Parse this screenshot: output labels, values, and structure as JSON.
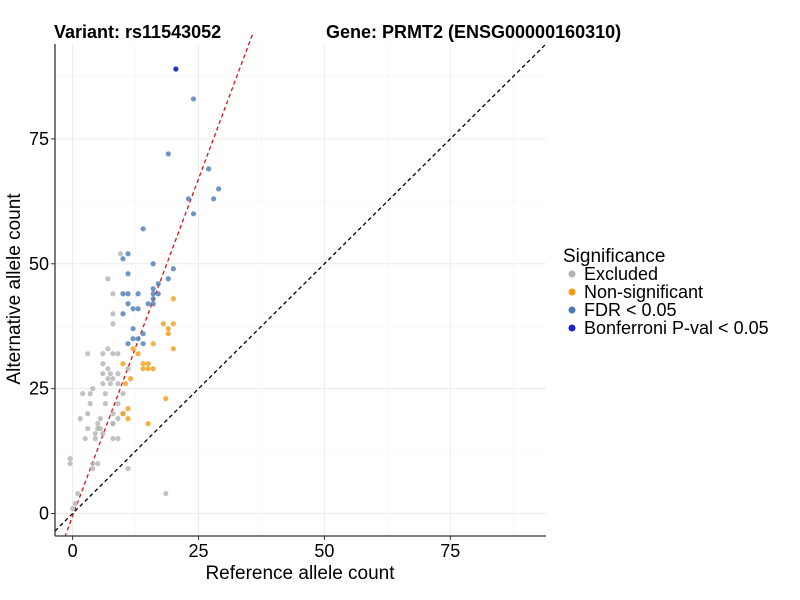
{
  "chart_data": {
    "type": "scatter",
    "title_left": "Variant: rs11543052",
    "title_right": "Gene: PRMT2 (ENSG00000160310)",
    "xlabel": "Reference allele count",
    "ylabel": "Alternative allele count",
    "xlim": [
      -3.5,
      94
    ],
    "ylim": [
      -4.5,
      94
    ],
    "x_ticks": [
      0,
      25,
      50,
      75
    ],
    "y_ticks": [
      0,
      25,
      50,
      75
    ],
    "legend": {
      "title": "Significance",
      "placement": "right",
      "entries": [
        {
          "key": "excluded",
          "label": "Excluded",
          "color": "#b3b3b3"
        },
        {
          "key": "nonsig",
          "label": "Non-significant",
          "color": "#f39c12"
        },
        {
          "key": "fdr",
          "label": "FDR < 0.05",
          "color": "#4a7ab5"
        },
        {
          "key": "bonf",
          "label": "Bonferroni P-val < 0.05",
          "color": "#1428d2"
        }
      ]
    },
    "reference_lines": [
      {
        "name": "identity",
        "slope": 1,
        "intercept": 0,
        "color": "#000000",
        "style": "dashed"
      },
      {
        "name": "fit",
        "slope": 2.7,
        "intercept": -0.5,
        "color": "#e01010",
        "style": "dashed"
      }
    ],
    "series": [
      {
        "name": "Excluded",
        "key": "excluded",
        "points": [
          [
            -0.5,
            10
          ],
          [
            -0.5,
            11
          ],
          [
            0,
            1
          ],
          [
            0.5,
            2
          ],
          [
            1,
            4
          ],
          [
            1.5,
            19
          ],
          [
            2,
            24
          ],
          [
            2.5,
            15
          ],
          [
            3,
            32
          ],
          [
            3,
            20
          ],
          [
            3,
            17
          ],
          [
            3.5,
            24
          ],
          [
            3.5,
            22
          ],
          [
            4,
            10
          ],
          [
            4,
            9
          ],
          [
            4,
            25
          ],
          [
            4.5,
            16
          ],
          [
            4.5,
            15
          ],
          [
            5,
            17
          ],
          [
            5,
            18
          ],
          [
            5,
            10
          ],
          [
            5.5,
            19
          ],
          [
            5.5,
            17
          ],
          [
            6,
            26
          ],
          [
            6,
            28
          ],
          [
            6,
            30
          ],
          [
            6,
            32
          ],
          [
            6.5,
            24
          ],
          [
            6.5,
            22
          ],
          [
            7,
            27
          ],
          [
            7,
            29
          ],
          [
            7,
            33
          ],
          [
            7,
            47
          ],
          [
            7.5,
            28
          ],
          [
            7.5,
            26
          ],
          [
            8,
            27
          ],
          [
            8,
            38
          ],
          [
            8,
            40
          ],
          [
            8,
            44
          ],
          [
            8,
            32
          ],
          [
            8,
            18
          ],
          [
            8,
            20
          ],
          [
            8,
            15
          ],
          [
            9,
            28
          ],
          [
            9,
            26
          ],
          [
            9,
            32
          ],
          [
            9,
            22
          ],
          [
            9,
            19
          ],
          [
            9,
            15
          ],
          [
            9.5,
            52
          ],
          [
            10,
            20
          ],
          [
            10,
            24
          ],
          [
            11,
            9
          ],
          [
            11,
            29
          ],
          [
            18.5,
            4
          ],
          [
            8,
            18
          ],
          [
            6,
            16
          ]
        ]
      },
      {
        "name": "Non-significant",
        "key": "nonsig",
        "points": [
          [
            10,
            30
          ],
          [
            10,
            20
          ],
          [
            10.5,
            26
          ],
          [
            11,
            19
          ],
          [
            11,
            21
          ],
          [
            11.5,
            27
          ],
          [
            12,
            33
          ],
          [
            13,
            32
          ],
          [
            14,
            29
          ],
          [
            14,
            30
          ],
          [
            15,
            29
          ],
          [
            15,
            30
          ],
          [
            15,
            18
          ],
          [
            16,
            34
          ],
          [
            16,
            29
          ],
          [
            18,
            38
          ],
          [
            18.5,
            23
          ],
          [
            19,
            36
          ],
          [
            19,
            37
          ],
          [
            20,
            33
          ],
          [
            20,
            38
          ],
          [
            20,
            43
          ]
        ]
      },
      {
        "name": "FDR < 0.05",
        "key": "fdr",
        "points": [
          [
            10,
            51
          ],
          [
            10,
            40
          ],
          [
            10,
            44
          ],
          [
            11,
            44
          ],
          [
            11,
            42
          ],
          [
            11,
            34
          ],
          [
            11,
            52
          ],
          [
            11,
            48
          ],
          [
            12,
            37
          ],
          [
            12,
            35
          ],
          [
            12,
            41
          ],
          [
            13,
            41
          ],
          [
            13,
            44
          ],
          [
            13,
            35
          ],
          [
            14,
            36
          ],
          [
            14,
            57
          ],
          [
            15,
            42
          ],
          [
            16,
            42
          ],
          [
            16,
            43
          ],
          [
            16,
            45
          ],
          [
            16,
            50
          ],
          [
            17,
            44
          ],
          [
            17,
            46
          ],
          [
            19,
            72
          ],
          [
            19,
            47
          ],
          [
            20,
            49
          ],
          [
            23,
            63
          ],
          [
            24,
            60
          ],
          [
            24,
            83
          ],
          [
            27,
            69
          ],
          [
            28,
            63
          ],
          [
            29,
            65
          ],
          [
            16,
            44
          ],
          [
            14,
            34
          ]
        ]
      },
      {
        "name": "Bonferroni P-val < 0.05",
        "key": "bonf",
        "points": [
          [
            20.5,
            89
          ]
        ]
      }
    ]
  }
}
